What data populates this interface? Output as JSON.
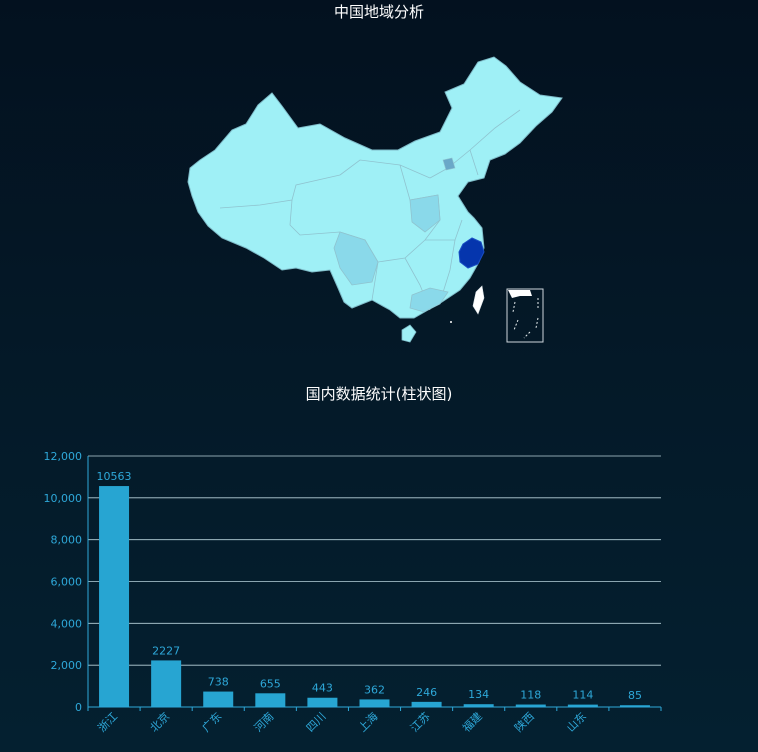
{
  "map": {
    "title": "中国地域分析",
    "colors": {
      "base": "#9ff0f6",
      "mid": "#8ad9ea",
      "highlight": "#0535ad",
      "border": "#7fbcc9",
      "inset_border": "#cfd6dc"
    }
  },
  "chart_data": {
    "type": "bar",
    "title": "国内数据统计(柱状图)",
    "categories": [
      "浙江",
      "北京",
      "广东",
      "河南",
      "四川",
      "上海",
      "江苏",
      "福建",
      "陕西",
      "山东",
      ""
    ],
    "values": [
      10563,
      2227,
      738,
      655,
      443,
      362,
      246,
      134,
      118,
      114,
      85
    ],
    "ylim": [
      0,
      12000
    ],
    "yticks": [
      "0",
      "2,000",
      "4,000",
      "6,000",
      "8,000",
      "10,000",
      "12,000"
    ],
    "grid": true,
    "bar_color": "#27a5d2",
    "axis_color": "#2ea8d9"
  }
}
